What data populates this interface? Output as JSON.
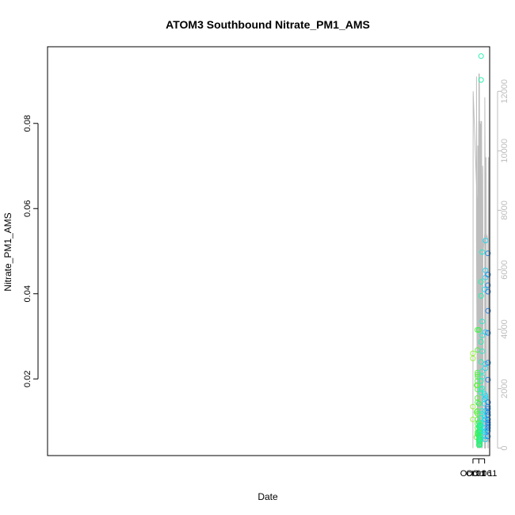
{
  "chart_data": {
    "type": "scatter",
    "title": "ATOM3 Southbound Nitrate_PM1_AMS",
    "xlabel": "Date",
    "ylabel": "Nitrate_PM1_AMS",
    "x_axis": {
      "type": "date",
      "ticks": [
        {
          "value": "2017-10-01",
          "label": "Oct 01"
        },
        {
          "value": "2017-10-06",
          "label": "Oct 06"
        },
        {
          "value": "2017-10-11",
          "label": "Oct 11"
        }
      ],
      "range": [
        "2016-09-30T12:00:00",
        "2017-10-15T08:00:00"
      ]
    },
    "y_axis": {
      "ticks": [
        "0.02",
        "0.04",
        "0.06",
        "0.08"
      ],
      "range": [
        0.002,
        0.098
      ]
    },
    "y2_axis": {
      "ticks": [
        "0",
        "2000",
        "4000",
        "6000",
        "8000",
        "10000",
        "12000"
      ],
      "range": [
        -250,
        13500
      ],
      "series_description": "altitude trace (gray line)"
    },
    "color_scale": "date-based gradient (yellow-green → green → cyan → blue)",
    "grid": false,
    "series": [
      {
        "points": [
          [
            "2017-10-01T00:00",
            0.026
          ],
          [
            "2017-10-01T00:00",
            0.0248
          ],
          [
            "2017-10-01T00:00",
            0.0135
          ],
          [
            "2017-10-01T00:00",
            0.0105
          ],
          [
            "2017-10-04T00:00",
            0.0185
          ],
          [
            "2017-10-04T00:00",
            0.0122
          ],
          [
            "2017-10-04T00:00",
            0.0063
          ],
          [
            "2017-10-04T19:00",
            0.0315
          ],
          [
            "2017-10-04T20:00",
            0.0215
          ],
          [
            "2017-10-04T20:30",
            0.021
          ],
          [
            "2017-10-04T21:00",
            0.0195
          ],
          [
            "2017-10-04T21:30",
            0.0185
          ],
          [
            "2017-10-04T22:00",
            0.0175
          ],
          [
            "2017-10-04T20:00",
            0.0155
          ],
          [
            "2017-10-04T21:00",
            0.0145
          ],
          [
            "2017-10-04T20:30",
            0.0125
          ],
          [
            "2017-10-04T22:00",
            0.0118
          ],
          [
            "2017-10-04T21:00",
            0.0105
          ],
          [
            "2017-10-04T20:00",
            0.0095
          ],
          [
            "2017-10-04T22:30",
            0.0085
          ],
          [
            "2017-10-04T21:30",
            0.0075
          ],
          [
            "2017-10-04T22:30",
            0.007
          ],
          [
            "2017-10-04T23:00",
            0.0268
          ],
          [
            "2017-10-04T23:00",
            0.0205
          ],
          [
            "2017-10-04T23:00",
            0.0072
          ],
          [
            "2017-10-06T00:00",
            0.0315
          ],
          [
            "2017-10-06T03:00",
            0.0142
          ],
          [
            "2017-10-06T00:00",
            0.0098
          ],
          [
            "2017-10-06T02:00",
            0.0088
          ],
          [
            "2017-10-06T01:00",
            0.0075
          ],
          [
            "2017-10-06T00:00",
            0.0065
          ],
          [
            "2017-10-06T02:00",
            0.0058
          ],
          [
            "2017-10-06T01:00",
            0.0052
          ],
          [
            "2017-10-06T00:30",
            0.0045
          ],
          [
            "2017-10-06T20:00",
            0.009
          ],
          [
            "2017-10-06T21:00",
            0.0085
          ],
          [
            "2017-10-06T22:00",
            0.0092
          ],
          [
            "2017-10-06T20:30",
            0.0078
          ],
          [
            "2017-10-06T21:30",
            0.007
          ],
          [
            "2017-10-06T22:30",
            0.0075
          ],
          [
            "2017-10-06T20:00",
            0.0062
          ],
          [
            "2017-10-06T21:00",
            0.0058
          ],
          [
            "2017-10-06T22:00",
            0.0052
          ],
          [
            "2017-10-06T20:30",
            0.0048
          ],
          [
            "2017-10-06T22:30",
            0.0045
          ],
          [
            "2017-10-08T00:00",
            0.0958
          ],
          [
            "2017-10-07T23:00",
            0.0902
          ],
          [
            "2017-10-08T00:00",
            0.0428
          ],
          [
            "2017-10-08T01:00",
            0.0395
          ],
          [
            "2017-10-07T23:00",
            0.0287
          ],
          [
            "2017-10-08T00:30",
            0.024
          ],
          [
            "2017-10-08T01:00",
            0.0195
          ],
          [
            "2017-10-08T00:30",
            0.0175
          ],
          [
            "2017-10-08T00:00",
            0.0168
          ],
          [
            "2017-10-08T00:00",
            0.0108
          ],
          [
            "2017-10-08T00:30",
            0.0095
          ],
          [
            "2017-10-08T01:00",
            0.0088
          ],
          [
            "2017-10-08T00:00",
            0.006
          ],
          [
            "2017-10-08T23:00",
            0.0498
          ],
          [
            "2017-10-08T23:00",
            0.0335
          ],
          [
            "2017-10-08T22:00",
            0.0302
          ],
          [
            "2017-10-08T22:00",
            0.0265
          ],
          [
            "2017-10-08T21:00",
            0.0218
          ],
          [
            "2017-10-08T22:00",
            0.0205
          ],
          [
            "2017-10-08T22:00",
            0.0178
          ],
          [
            "2017-10-08T21:00",
            0.0125
          ],
          [
            "2017-10-08T22:00",
            0.0118
          ],
          [
            "2017-10-08T21:00",
            0.0078
          ],
          [
            "2017-10-11T00:00",
            0.041
          ],
          [
            "2017-10-11T00:00",
            0.0165
          ],
          [
            "2017-10-11T01:00",
            0.0152
          ],
          [
            "2017-10-10T23:00",
            0.0142
          ],
          [
            "2017-10-11T00:00",
            0.0112
          ],
          [
            "2017-10-11T01:00",
            0.0105
          ],
          [
            "2017-10-11T00:00",
            0.0085
          ],
          [
            "2017-10-11T00:00",
            0.0075
          ],
          [
            "2017-10-11T18:00",
            0.0455
          ],
          [
            "2017-10-11T18:00",
            0.0438
          ],
          [
            "2017-10-11T19:00",
            0.0525
          ],
          [
            "2017-10-11T18:00",
            0.031
          ],
          [
            "2017-10-11T19:00",
            0.0235
          ],
          [
            "2017-10-11T18:00",
            0.0225
          ],
          [
            "2017-10-11T19:00",
            0.016
          ],
          [
            "2017-10-11T20:00",
            0.0155
          ],
          [
            "2017-10-11T19:00",
            0.0125
          ],
          [
            "2017-10-11T20:00",
            0.0105
          ],
          [
            "2017-10-11T18:00",
            0.0095
          ],
          [
            "2017-10-11T19:00",
            0.0078
          ],
          [
            "2017-10-11T20:00",
            0.0065
          ],
          [
            "2017-10-11T18:00",
            0.0058
          ],
          [
            "2017-10-13T20:00",
            0.0495
          ],
          [
            "2017-10-13T21:00",
            0.0445
          ],
          [
            "2017-10-13T20:00",
            0.042
          ],
          [
            "2017-10-13T22:00",
            0.0405
          ],
          [
            "2017-10-14T00:00",
            0.036
          ],
          [
            "2017-10-13T22:00",
            0.0308
          ],
          [
            "2017-10-13T23:00",
            0.0238
          ],
          [
            "2017-10-13T22:00",
            0.0198
          ],
          [
            "2017-10-14T00:00",
            0.0145
          ],
          [
            "2017-10-13T20:00",
            0.0135
          ],
          [
            "2017-10-13T21:00",
            0.013
          ],
          [
            "2017-10-13T20:00",
            0.0122
          ],
          [
            "2017-10-13T23:00",
            0.0115
          ],
          [
            "2017-10-14T00:00",
            0.0105
          ],
          [
            "2017-10-13T22:00",
            0.0098
          ],
          [
            "2017-10-13T23:00",
            0.0092
          ],
          [
            "2017-10-13T21:00",
            0.0085
          ],
          [
            "2017-10-13T20:00",
            0.0078
          ],
          [
            "2017-10-13T20:00",
            0.0065
          ]
        ]
      }
    ],
    "altitude_trace": [
      [
        "2017-10-01T00:00",
        0
      ],
      [
        "2017-10-01T04:00",
        12000
      ],
      [
        "2017-10-04T18:00",
        8000
      ],
      [
        "2017-10-04T20:00",
        0
      ],
      [
        "2017-10-04T00:00",
        12500
      ],
      [
        "2017-10-04T00:00",
        7000
      ],
      [
        "2017-10-04T20:00",
        0
      ],
      [
        "2017-10-05T23:00",
        11000
      ],
      [
        "2017-10-06T00:00",
        0
      ],
      [
        "2017-10-06T02:00",
        12600
      ],
      [
        "2017-10-06T04:00",
        9800
      ],
      [
        "2017-10-06T20:00",
        7500
      ],
      [
        "2017-10-06T21:00",
        0
      ],
      [
        "2017-10-07T00:00",
        11000
      ],
      [
        "2017-10-07T00:00",
        8600
      ],
      [
        "2017-10-07T20:00",
        7000
      ],
      [
        "2017-10-08T00:00",
        0
      ],
      [
        "2017-10-08T00:30",
        11000
      ],
      [
        "2017-10-08T02:00",
        6300
      ],
      [
        "2017-10-08T21:00",
        7300
      ],
      [
        "2017-10-09T00:00",
        0
      ],
      [
        "2017-10-09T01:00",
        6300
      ],
      [
        "2017-10-11T18:00",
        7500
      ],
      [
        "2017-10-11T19:00",
        0
      ],
      [
        "2017-10-11T00:00",
        0
      ],
      [
        "2017-10-11T04:00",
        11800
      ],
      [
        "2017-10-11T18:00",
        7300
      ],
      [
        "2017-10-13T20:00",
        7000
      ],
      [
        "2017-10-14T00:00",
        0
      ]
    ]
  }
}
